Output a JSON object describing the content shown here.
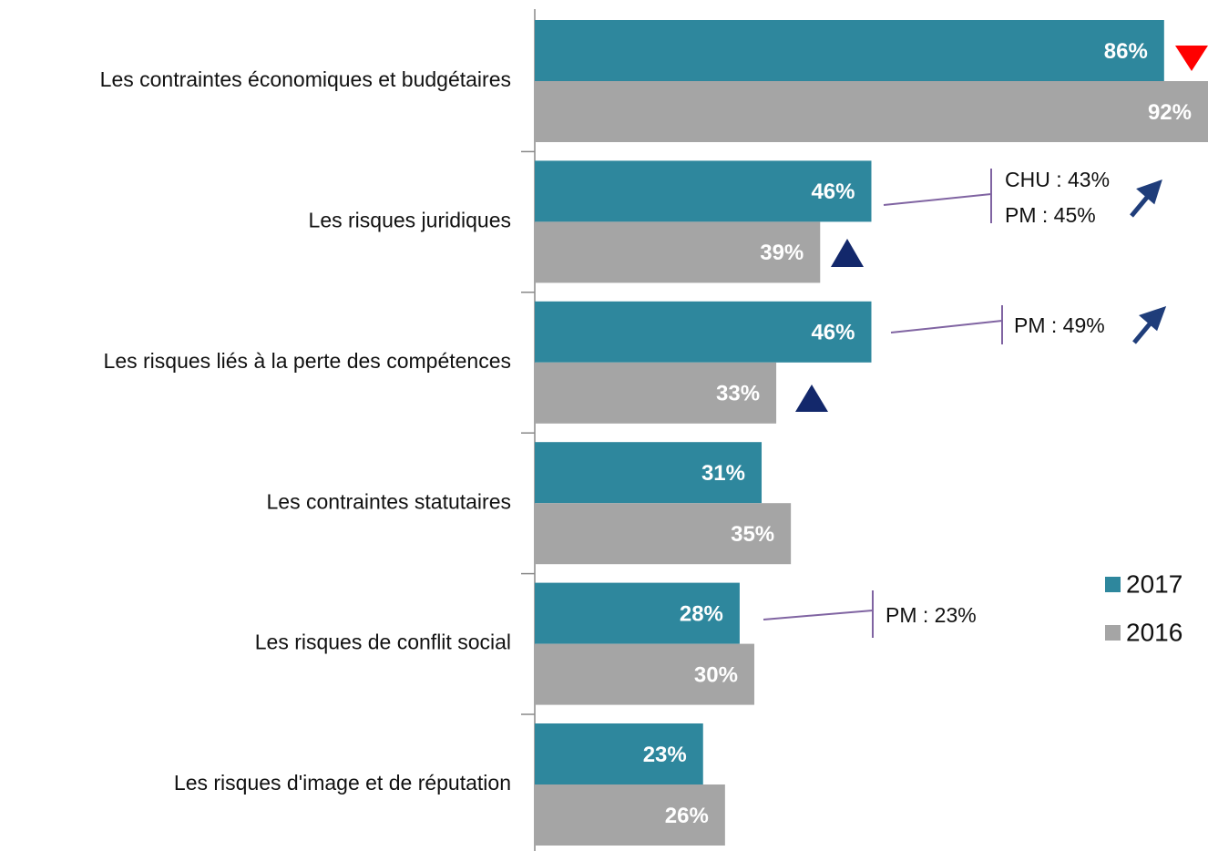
{
  "chart_data": {
    "type": "bar",
    "orientation": "horizontal",
    "categories": [
      "Les contraintes économiques et budgétaires",
      "Les risques juridiques",
      "Les risques liés à la perte des compétences",
      "Les contraintes statutaires",
      "Les risques de conflit social",
      "Les risques d'image et de réputation"
    ],
    "series": [
      {
        "name": "2017",
        "color": "#2e879d",
        "values": [
          86,
          46,
          46,
          31,
          28,
          23
        ],
        "value_labels": [
          "86%",
          "46%",
          "46%",
          "31%",
          "28%",
          "23%"
        ]
      },
      {
        "name": "2016",
        "color": "#a5a5a5",
        "values": [
          92,
          39,
          33,
          35,
          30,
          26
        ],
        "value_labels": [
          "92%",
          "39%",
          "33%",
          "35%",
          "30%",
          "26%"
        ]
      }
    ],
    "xlim": [
      0,
      92
    ],
    "annotations": [
      [
        "CHU : 43%",
        "PM : 45%"
      ],
      [
        "PM : 49%"
      ],
      [
        "PM : 23%"
      ]
    ]
  }
}
